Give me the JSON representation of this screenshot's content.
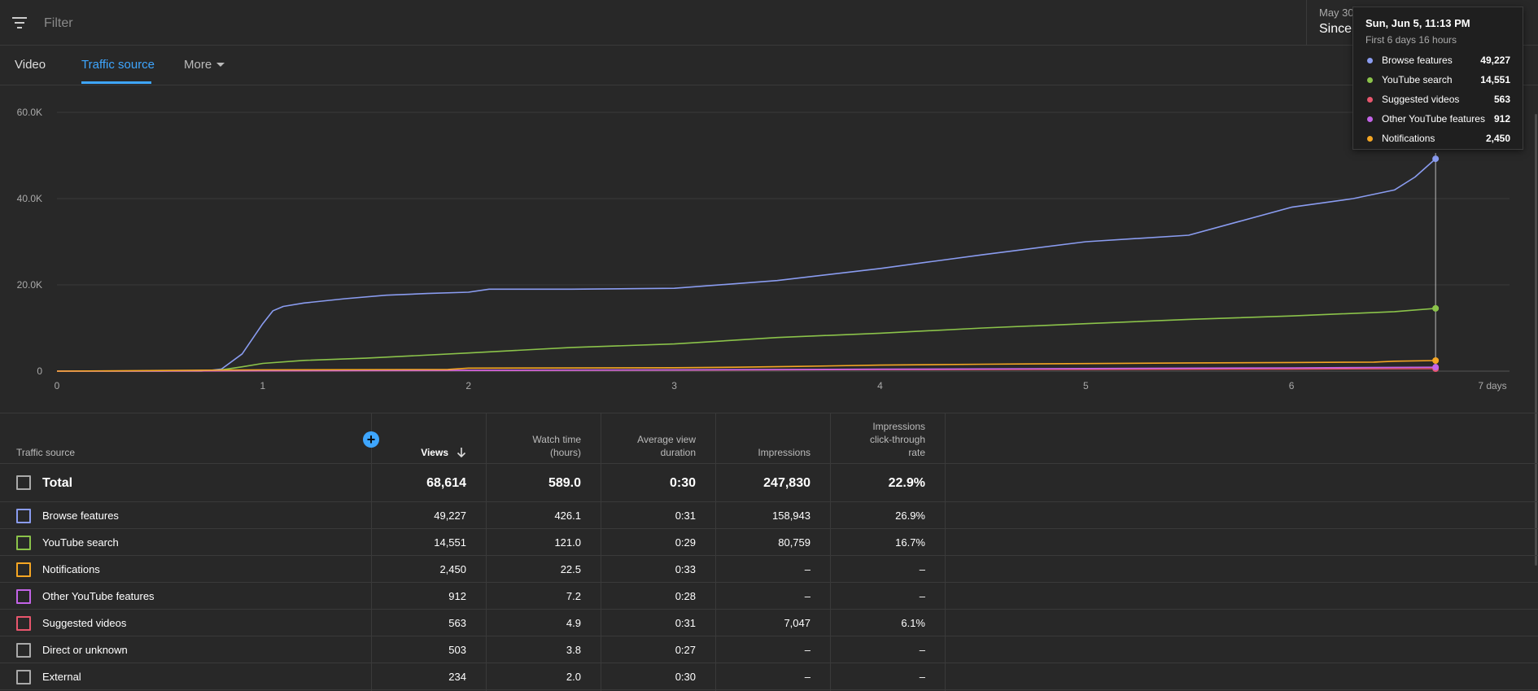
{
  "filter": {
    "placeholder": "Filter"
  },
  "date_range": {
    "small": "May 30",
    "main": "Since"
  },
  "tabs": [
    {
      "label": "Video"
    },
    {
      "label": "Traffic source"
    },
    {
      "label": "More"
    }
  ],
  "chart_data": {
    "type": "line",
    "x_ticks": [
      "0",
      "1",
      "2",
      "3",
      "4",
      "5",
      "6",
      "7 days"
    ],
    "y_ticks": [
      "0",
      "20.0K",
      "40.0K",
      "60.0K"
    ],
    "xlim": [
      0,
      7
    ],
    "ylim": [
      0,
      60000
    ],
    "grid": true,
    "series": [
      {
        "name": "Browse features",
        "color": "#8a9cf0",
        "x": [
          0,
          0.5,
          0.75,
          0.8,
          0.9,
          1.0,
          1.05,
          1.1,
          1.2,
          1.4,
          1.6,
          1.8,
          2.0,
          2.1,
          2.5,
          3.0,
          3.5,
          4.0,
          4.5,
          5.0,
          5.5,
          6.0,
          6.3,
          6.5,
          6.6,
          6.7
        ],
        "y": [
          0,
          0,
          200,
          500,
          4000,
          11000,
          14000,
          15000,
          15800,
          16800,
          17600,
          18000,
          18300,
          19000,
          19000,
          19200,
          21000,
          23800,
          27000,
          30000,
          31500,
          38000,
          40000,
          42000,
          45000,
          49227
        ]
      },
      {
        "name": "YouTube search",
        "color": "#8bc34a",
        "x": [
          0,
          0.7,
          0.8,
          0.9,
          1.0,
          1.2,
          1.5,
          2.0,
          2.5,
          3.0,
          3.5,
          4.0,
          4.5,
          5.0,
          5.5,
          6.0,
          6.5,
          6.7
        ],
        "y": [
          0,
          0,
          300,
          1000,
          1800,
          2500,
          3000,
          4200,
          5500,
          6300,
          7800,
          8800,
          10000,
          11000,
          12000,
          12800,
          13800,
          14551
        ]
      },
      {
        "name": "Suggested videos",
        "color": "#e8566d",
        "x": [
          0,
          1,
          2,
          3,
          4,
          5,
          6,
          6.7
        ],
        "y": [
          0,
          50,
          150,
          250,
          350,
          420,
          500,
          563
        ]
      },
      {
        "name": "Other YouTube features",
        "color": "#c363e7",
        "x": [
          0,
          1,
          2,
          3,
          4,
          5,
          6,
          6.7
        ],
        "y": [
          0,
          100,
          200,
          300,
          450,
          600,
          750,
          912
        ]
      },
      {
        "name": "Notifications",
        "color": "#f5a623",
        "x": [
          0,
          1,
          1.9,
          2.0,
          3.0,
          3.3,
          3.6,
          4.0,
          4.5,
          5.0,
          5.5,
          6.0,
          6.4,
          6.5,
          6.7
        ],
        "y": [
          0,
          300,
          400,
          700,
          800,
          900,
          1100,
          1400,
          1600,
          1750,
          1900,
          2000,
          2100,
          2300,
          2450
        ]
      }
    ],
    "hover_x": 6.7
  },
  "tooltip": {
    "title": "Sun, Jun 5, 11:13 PM",
    "subtitle": "First 6 days 16 hours",
    "rows": [
      {
        "name": "Browse features",
        "value": "49,227",
        "color": "#8a9cf0"
      },
      {
        "name": "YouTube search",
        "value": "14,551",
        "color": "#8bc34a"
      },
      {
        "name": "Suggested videos",
        "value": "563",
        "color": "#e8566d"
      },
      {
        "name": "Other YouTube features",
        "value": "912",
        "color": "#c363e7"
      },
      {
        "name": "Notifications",
        "value": "2,450",
        "color": "#f5a623"
      }
    ]
  },
  "table": {
    "headers": {
      "source": "Traffic source",
      "views": "Views",
      "watch_time": [
        "Watch time",
        "(hours)"
      ],
      "avg_duration": [
        "Average view",
        "duration"
      ],
      "impressions": "Impressions",
      "ctr": [
        "Impressions",
        "click-through",
        "rate"
      ]
    },
    "total": {
      "name": "Total",
      "views": "68,614",
      "watch_time": "589.0",
      "avg_duration": "0:30",
      "impressions": "247,830",
      "ctr": "22.9%"
    },
    "rows": [
      {
        "name": "Browse features",
        "views": "49,227",
        "watch_time": "426.1",
        "avg_duration": "0:31",
        "impressions": "158,943",
        "ctr": "26.9%",
        "color": "#8a9cf0"
      },
      {
        "name": "YouTube search",
        "views": "14,551",
        "watch_time": "121.0",
        "avg_duration": "0:29",
        "impressions": "80,759",
        "ctr": "16.7%",
        "color": "#8bc34a"
      },
      {
        "name": "Notifications",
        "views": "2,450",
        "watch_time": "22.5",
        "avg_duration": "0:33",
        "impressions": "–",
        "ctr": "–",
        "color": "#f5a623"
      },
      {
        "name": "Other YouTube features",
        "views": "912",
        "watch_time": "7.2",
        "avg_duration": "0:28",
        "impressions": "–",
        "ctr": "–",
        "color": "#c363e7"
      },
      {
        "name": "Suggested videos",
        "views": "563",
        "watch_time": "4.9",
        "avg_duration": "0:31",
        "impressions": "7,047",
        "ctr": "6.1%",
        "color": "#e8566d"
      },
      {
        "name": "Direct or unknown",
        "views": "503",
        "watch_time": "3.8",
        "avg_duration": "0:27",
        "impressions": "–",
        "ctr": "–",
        "color": "#aaaaaa"
      },
      {
        "name": "External",
        "views": "234",
        "watch_time": "2.0",
        "avg_duration": "0:30",
        "impressions": "–",
        "ctr": "–",
        "color": "#aaaaaa"
      }
    ]
  }
}
